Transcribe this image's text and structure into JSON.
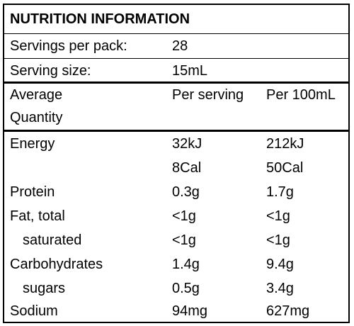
{
  "title": "NUTRITION INFORMATION",
  "servings": {
    "label": "Servings per pack:",
    "value": "28"
  },
  "serving_size": {
    "label": "Serving size:",
    "value": "15mL"
  },
  "header": {
    "col1_line1": "Average",
    "col1_line2": "Quantity",
    "col2": "Per serving",
    "col3": "Per 100mL"
  },
  "nutrients": {
    "energy": {
      "name": "Energy",
      "per_serving_kj": "32kJ",
      "per_100_kj": "212kJ",
      "per_serving_cal": "8Cal",
      "per_100_cal": "50Cal"
    },
    "protein": {
      "name": "Protein",
      "per_serving": "0.3g",
      "per_100": "1.7g"
    },
    "fat_total": {
      "name": "Fat, total",
      "per_serving": "<1g",
      "per_100": "<1g"
    },
    "saturated": {
      "name": "saturated",
      "per_serving": "<1g",
      "per_100": "<1g"
    },
    "carbohydrates": {
      "name": "Carbohydrates",
      "per_serving": "1.4g",
      "per_100": "9.4g"
    },
    "sugars": {
      "name": "sugars",
      "per_serving": "0.5g",
      "per_100": "3.4g"
    },
    "sodium": {
      "name": "Sodium",
      "per_serving": "94mg",
      "per_100": "627mg"
    }
  }
}
